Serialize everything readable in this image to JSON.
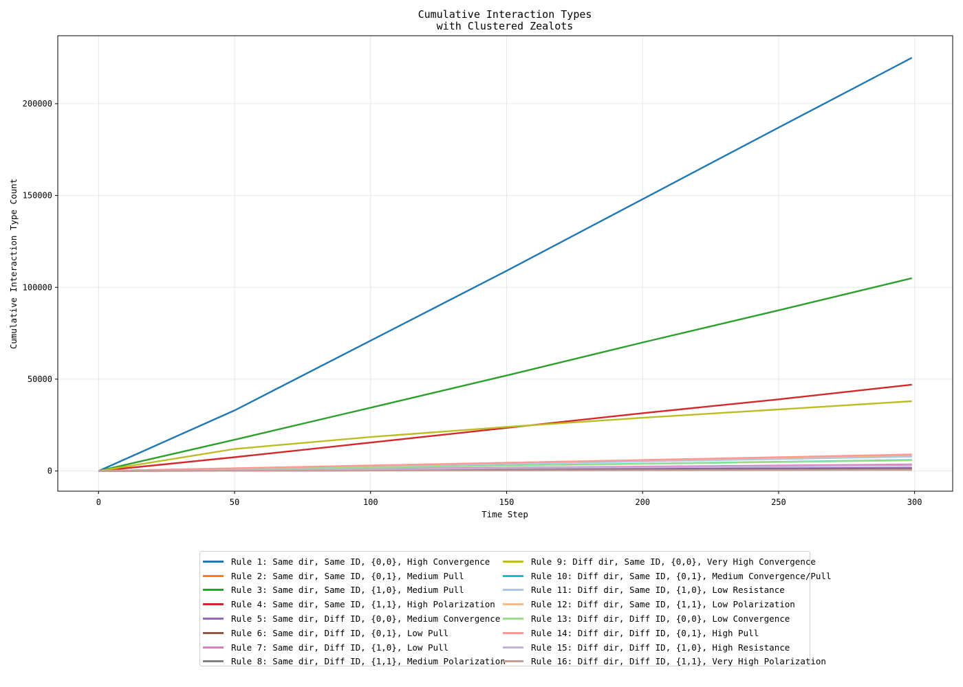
{
  "chart_data": {
    "type": "line",
    "title_line1": "Cumulative Interaction Types",
    "title_line2": "with Clustered Zealots",
    "xlabel": "Time Step",
    "ylabel": "Cumulative Interaction Type Count",
    "xlim": [
      -15,
      314
    ],
    "ylim": [
      -11000,
      237000
    ],
    "xticks": [
      0,
      50,
      100,
      150,
      200,
      250,
      300
    ],
    "yticks": [
      0,
      50000,
      100000,
      150000,
      200000
    ],
    "grid": true,
    "legend_placement": "below plot, two columns",
    "x": [
      0,
      50,
      100,
      150,
      200,
      250,
      299
    ],
    "series": [
      {
        "name": "Rule 1: Same dir, Same ID, {0,0}, High Convergence",
        "color": "#1f77b4",
        "values": [
          0,
          33000,
          71000,
          109000,
          148000,
          187000,
          225000
        ]
      },
      {
        "name": "Rule 2: Same dir, Same ID, {0,1}, Medium Pull",
        "color": "#ff7f0e",
        "values": [
          0,
          1400,
          2800,
          4200,
          5600,
          7000,
          8400
        ]
      },
      {
        "name": "Rule 3: Same dir, Same ID, {1,0}, Medium Pull",
        "color": "#2ca02c",
        "values": [
          0,
          17000,
          34500,
          52000,
          70000,
          87500,
          105000
        ]
      },
      {
        "name": "Rule 4: Same dir, Same ID, {1,1}, High Polarization",
        "color": "#d62728",
        "values": [
          0,
          7500,
          15500,
          23500,
          31500,
          39000,
          47000
        ]
      },
      {
        "name": "Rule 5: Same dir, Diff ID, {0,0}, Medium Convergence",
        "color": "#9467bd",
        "values": [
          0,
          300,
          600,
          900,
          1200,
          1500,
          1800
        ]
      },
      {
        "name": "Rule 6: Same dir, Diff ID, {0,1}, Low Pull",
        "color": "#8c564b",
        "values": [
          0,
          200,
          400,
          600,
          800,
          1000,
          1200
        ]
      },
      {
        "name": "Rule 7: Same dir, Diff ID, {1,0}, Low Pull",
        "color": "#e377c2",
        "values": [
          0,
          600,
          1200,
          1800,
          2400,
          3000,
          3600
        ]
      },
      {
        "name": "Rule 8: Same dir, Diff ID, {1,1}, Medium Polarization",
        "color": "#7f7f7f",
        "values": [
          0,
          150,
          300,
          450,
          600,
          750,
          900
        ]
      },
      {
        "name": "Rule 9: Diff dir, Same ID, {0,0}, Very High Convergence",
        "color": "#bcbd22",
        "values": [
          0,
          12000,
          18500,
          24000,
          29000,
          33500,
          38000
        ]
      },
      {
        "name": "Rule 10: Diff dir, Same ID, {0,1}, Medium Convergence/Pull",
        "color": "#17becf",
        "values": [
          0,
          1000,
          2000,
          3000,
          4000,
          5000,
          6000
        ]
      },
      {
        "name": "Rule 11: Diff dir, Same ID, {1,0}, Low Resistance",
        "color": "#aec7e8",
        "values": [
          0,
          1300,
          2600,
          3900,
          5200,
          6500,
          7800
        ]
      },
      {
        "name": "Rule 12: Diff dir, Same ID, {1,1}, Low Polarization",
        "color": "#ffbb78",
        "values": [
          0,
          1500,
          3000,
          4500,
          5900,
          7300,
          8700
        ]
      },
      {
        "name": "Rule 13: Diff dir, Diff ID, {0,0}, Low Convergence",
        "color": "#98df8a",
        "values": [
          0,
          900,
          1900,
          2900,
          3900,
          4900,
          5800
        ]
      },
      {
        "name": "Rule 14: Diff dir, Diff ID, {0,1}, High Pull",
        "color": "#ff9896",
        "values": [
          0,
          1500,
          3000,
          4500,
          6000,
          7500,
          9000
        ]
      },
      {
        "name": "Rule 15: Diff dir, Diff ID, {1,0}, High Resistance",
        "color": "#c5b0d5",
        "values": [
          0,
          500,
          1000,
          1500,
          2000,
          2500,
          3000
        ]
      },
      {
        "name": "Rule 16: Diff dir, Diff ID, {1,1}, Very High Polarization",
        "color": "#c49c94",
        "values": [
          0,
          100,
          200,
          300,
          400,
          500,
          600
        ]
      }
    ]
  }
}
